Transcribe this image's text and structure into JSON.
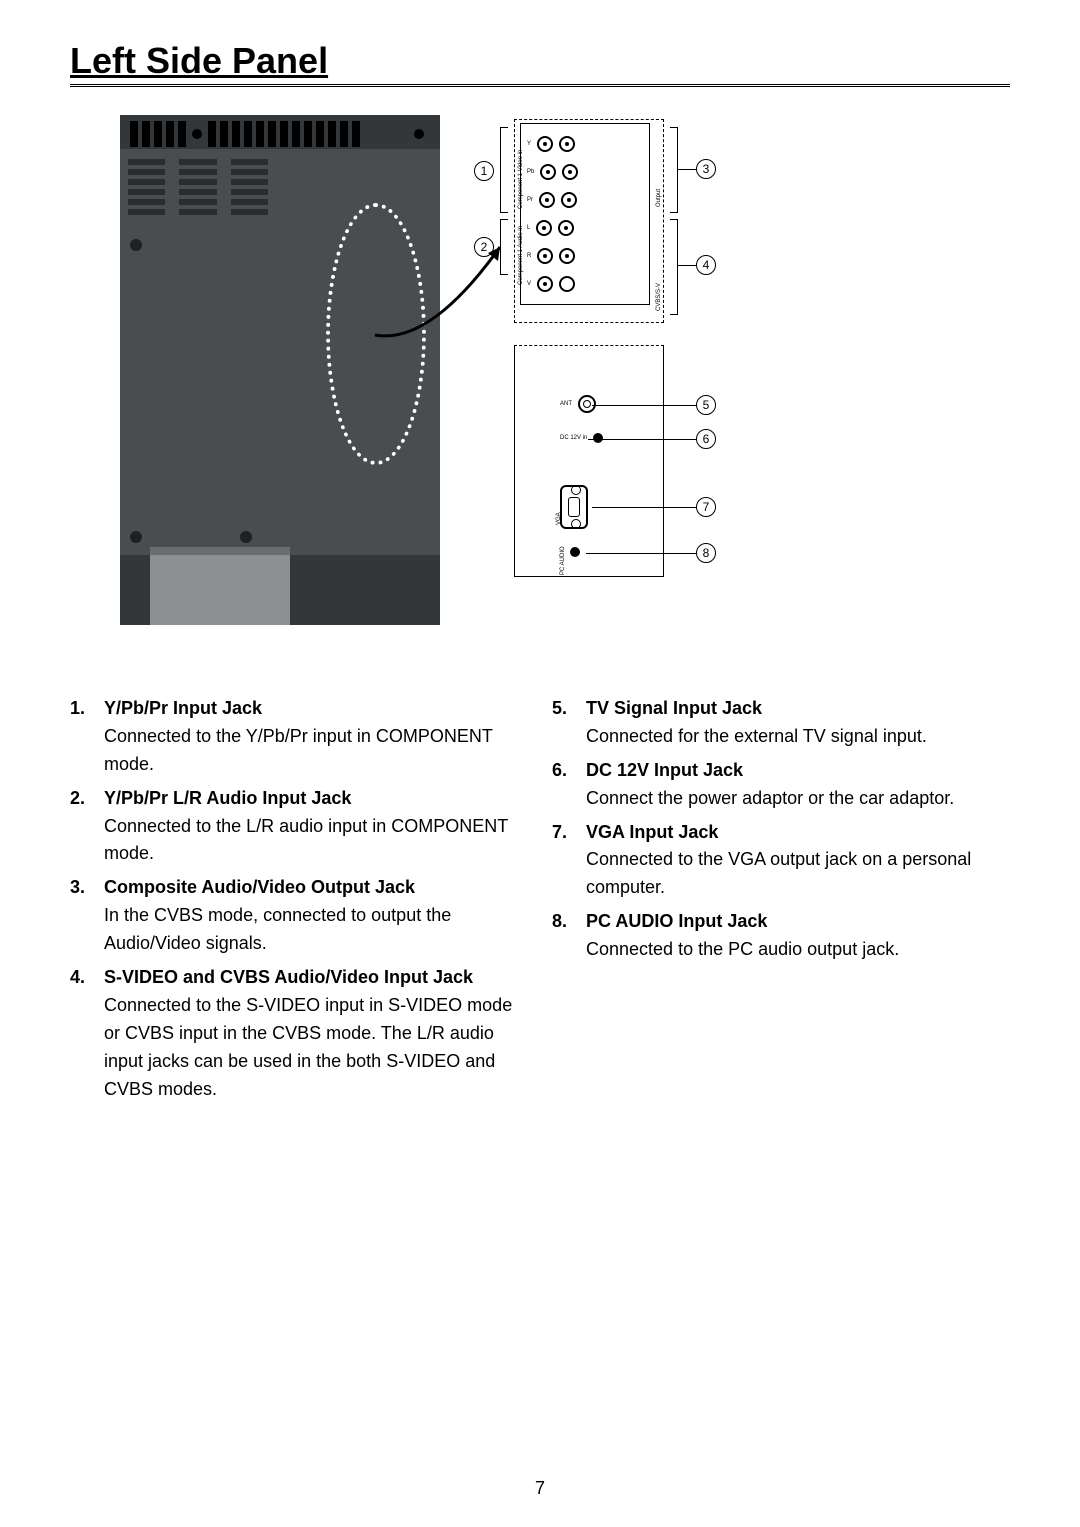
{
  "title": "Left Side Panel",
  "page_number": "7",
  "callouts": [
    "1",
    "2",
    "3",
    "4",
    "5",
    "6",
    "7",
    "8"
  ],
  "diagram_labels": {
    "component_video": "Component 1 Video in",
    "component_audio": "Component 1 Audio in",
    "av_out": "Output",
    "cvbs": "CVBS/S-V",
    "ant": "ANT",
    "dc": "DC 12V in",
    "vga": "VGA",
    "pc_audio": "PC AUDIO"
  },
  "left_items": [
    {
      "n": "1.",
      "h": "Y/Pb/Pr Input Jack",
      "d": "Connected to the Y/Pb/Pr input in COMPONENT mode."
    },
    {
      "n": "2.",
      "h": "Y/Pb/Pr L/R Audio Input Jack",
      "d": "Connected to the L/R audio input in COMPONENT mode."
    },
    {
      "n": "3.",
      "h": "Composite Audio/Video Output Jack",
      "d": "In the CVBS mode, connected to output the Audio/Video signals."
    },
    {
      "n": "4.",
      "h": "S-VIDEO and CVBS Audio/Video Input Jack",
      "d": "Connected to the S-VIDEO input in S-VIDEO mode or CVBS input in the CVBS mode. The L/R audio input jacks can be used in the both S-VIDEO and CVBS modes."
    }
  ],
  "right_items": [
    {
      "n": "5.",
      "h": "TV Signal Input Jack",
      "d": "Connected for the external TV signal input."
    },
    {
      "n": "6.",
      "h": "DC 12V Input Jack",
      "d": "Connect the power adaptor or the car adaptor."
    },
    {
      "n": "7.",
      "h": "VGA Input Jack",
      "d": "Connected to the VGA output jack on a personal computer."
    },
    {
      "n": "8.",
      "h": "PC AUDIO Input Jack",
      "d": "Connected to the PC audio output jack."
    }
  ]
}
